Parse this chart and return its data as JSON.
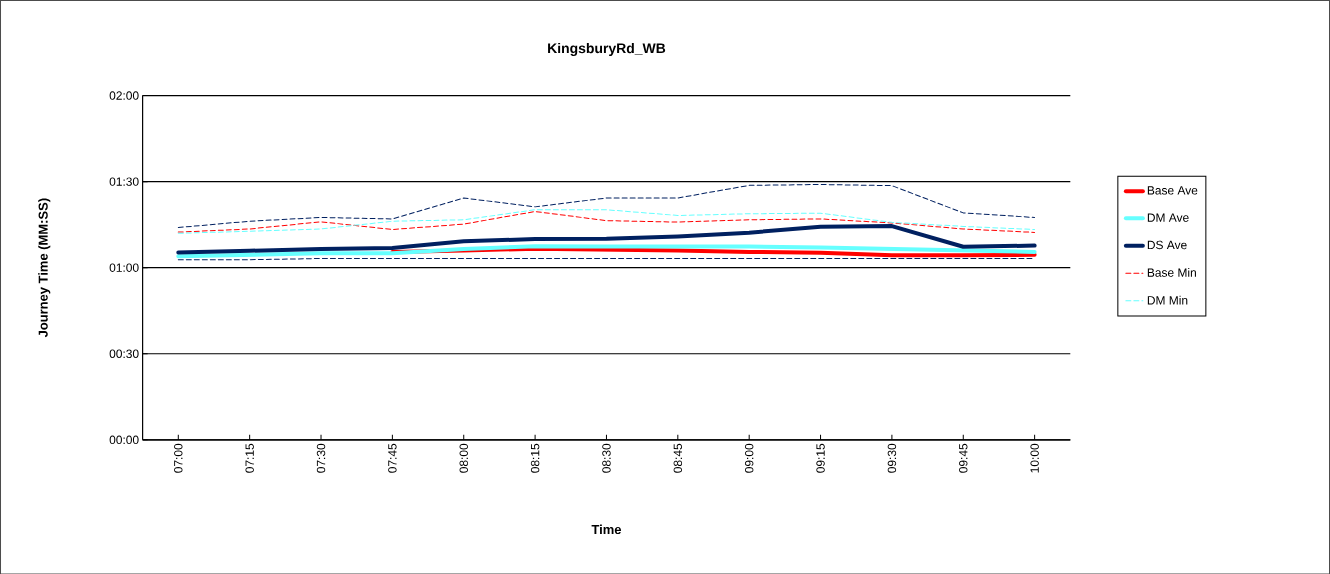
{
  "chart_data": {
    "type": "line",
    "title": "KingsburyRd_WB",
    "xlabel": "Time",
    "ylabel": "Journey Time (MM:SS)",
    "categories": [
      "07:00",
      "07:15",
      "07:30",
      "07:45",
      "08:00",
      "08:15",
      "08:30",
      "08:45",
      "09:00",
      "09:15",
      "09:30",
      "09:45",
      "10:00"
    ],
    "ylim": [
      0,
      120
    ],
    "yticks": [
      {
        "value": 0,
        "label": "00:00"
      },
      {
        "value": 30,
        "label": "00:30"
      },
      {
        "value": 60,
        "label": "01:00"
      },
      {
        "value": 90,
        "label": "01:30"
      },
      {
        "value": 120,
        "label": "02:00"
      }
    ],
    "grid": "y",
    "legend": "right",
    "series": [
      {
        "name": "Base Ave",
        "color": "#ff0000",
        "line_style": "solid",
        "values": [
          null,
          null,
          null,
          65.5,
          66,
          66.6,
          66.3,
          66,
          65.5,
          65.2,
          64.3,
          64.3,
          64.5
        ]
      },
      {
        "name": "DM Ave",
        "color": "#66ffff",
        "line_style": "solid",
        "values": [
          64,
          64.5,
          65,
          65,
          66.5,
          67.5,
          67.4,
          67.4,
          67.4,
          67,
          66.5,
          66,
          65.5
        ]
      },
      {
        "name": "DS Ave",
        "color": "#002060",
        "line_style": "solid",
        "values": [
          65.3,
          65.9,
          66.5,
          66.9,
          69.2,
          70,
          70.1,
          70.9,
          72.2,
          74.3,
          74.5,
          67.3,
          67.7
        ]
      },
      {
        "name": "Base Min",
        "color": "#ff0000",
        "line_style": "dashed",
        "values": [
          72.4,
          73.5,
          76,
          73.3,
          75.2,
          79.6,
          76.4,
          75.9,
          76.7,
          77,
          75.6,
          73.5,
          72.3
        ]
      },
      {
        "name": "DM Min",
        "color": "#66ffff",
        "line_style": "dashed",
        "values": [
          72,
          72.7,
          73.5,
          76.2,
          76.7,
          80.2,
          80.2,
          78.2,
          78.8,
          79,
          75.8,
          74.4,
          73.3
        ]
      },
      {
        "color": "#002060",
        "line_style": "dashed",
        "values": [
          74,
          76.2,
          77.5,
          77,
          84.3,
          81.2,
          84.3,
          84.3,
          88.7,
          89,
          88.6,
          79.1,
          77.5
        ]
      },
      {
        "color": "#002060",
        "line_style": "dashed",
        "values": [
          62.8,
          62.8,
          63.2,
          63.2,
          63.2,
          63.2,
          63.2,
          63.2,
          63.2,
          63.2,
          63.2,
          63.2,
          63.2
        ]
      }
    ]
  }
}
